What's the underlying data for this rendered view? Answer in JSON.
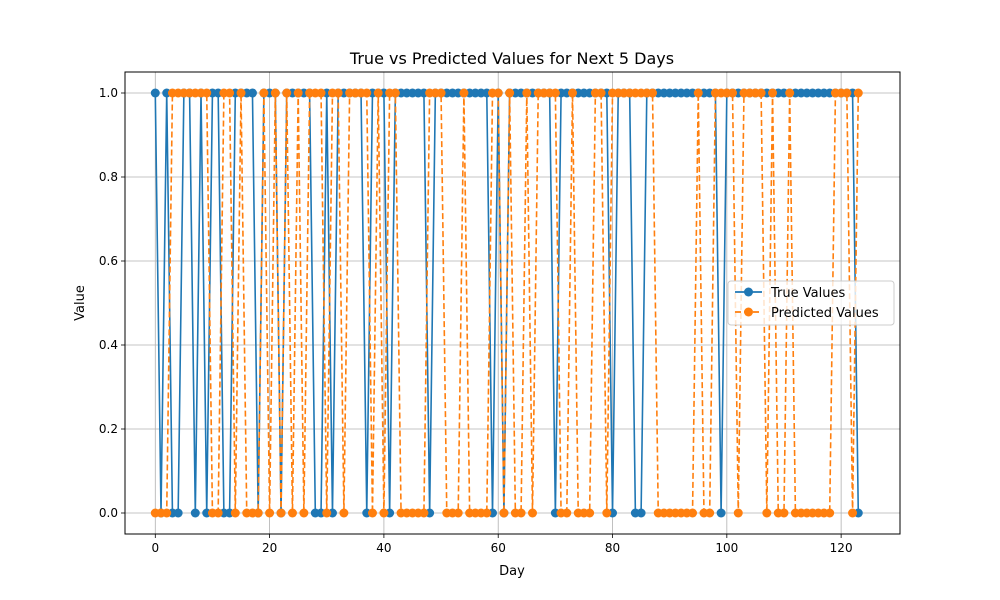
{
  "chart_data": {
    "type": "line",
    "title": "True vs Predicted Values for Next 5 Days",
    "xlabel": "Day",
    "ylabel": "Value",
    "xlim": [
      -5.3,
      130.3
    ],
    "ylim": [
      -0.05,
      1.05
    ],
    "xticks": [
      0,
      20,
      40,
      60,
      80,
      100,
      120
    ],
    "yticks": [
      0.0,
      0.2,
      0.4,
      0.6,
      0.8,
      1.0
    ],
    "xtick_labels": [
      "0",
      "20",
      "40",
      "60",
      "80",
      "100",
      "120"
    ],
    "ytick_labels": [
      "0.0",
      "0.2",
      "0.4",
      "0.6",
      "0.8",
      "1.0"
    ],
    "grid": true,
    "legend_position": "center-right",
    "x_start": 0,
    "series": [
      {
        "name": "True Values",
        "color": "#1f77b4",
        "linestyle": "solid",
        "marker": "circle",
        "values": [
          1,
          0,
          1,
          0,
          0,
          1,
          1,
          0,
          1,
          0,
          1,
          1,
          0,
          0,
          1,
          1,
          1,
          1,
          0,
          1,
          1,
          1,
          0,
          1,
          1,
          1,
          1,
          1,
          0,
          0,
          1,
          0,
          1,
          1,
          1,
          1,
          1,
          0,
          1,
          1,
          1,
          0,
          1,
          1,
          1,
          1,
          1,
          1,
          0,
          1,
          1,
          1,
          1,
          1,
          1,
          1,
          1,
          1,
          1,
          0,
          1,
          0,
          1,
          1,
          1,
          1,
          1,
          1,
          1,
          1,
          0,
          1,
          1,
          1,
          1,
          1,
          1,
          1,
          1,
          1,
          0,
          1,
          1,
          1,
          0,
          0,
          1,
          1,
          1,
          1,
          1,
          1,
          1,
          1,
          1,
          1,
          1,
          1,
          1,
          0,
          1,
          1,
          1,
          1,
          1,
          1,
          1,
          1,
          1,
          1,
          1,
          1,
          1,
          1,
          1,
          1,
          1,
          1,
          1,
          1,
          1,
          1,
          1,
          0
        ]
      },
      {
        "name": "Predicted Values",
        "color": "#ff7f0e",
        "linestyle": "dashed",
        "marker": "circle",
        "values": [
          0,
          0,
          0,
          1,
          1,
          1,
          1,
          1,
          1,
          1,
          0,
          0,
          1,
          1,
          0,
          1,
          0,
          0,
          0,
          1,
          0,
          1,
          0,
          1,
          0,
          1,
          0,
          1,
          1,
          1,
          0,
          1,
          1,
          0,
          1,
          1,
          1,
          1,
          0,
          1,
          0,
          1,
          1,
          0,
          0,
          0,
          0,
          0,
          1,
          1,
          1,
          0,
          0,
          0,
          1,
          0,
          0,
          0,
          0,
          1,
          1,
          0,
          1,
          0,
          0,
          1,
          0,
          1,
          1,
          1,
          1,
          0,
          0,
          1,
          0,
          0,
          0,
          1,
          1,
          0,
          1,
          1,
          1,
          1,
          1,
          1,
          1,
          1,
          0,
          0,
          0,
          0,
          0,
          0,
          0,
          1,
          0,
          0,
          1,
          1,
          1,
          1,
          0,
          1,
          1,
          1,
          1,
          0,
          1,
          0,
          0,
          1,
          0,
          0,
          0,
          0,
          0,
          0,
          0,
          1,
          1,
          1,
          0,
          1
        ]
      }
    ]
  }
}
